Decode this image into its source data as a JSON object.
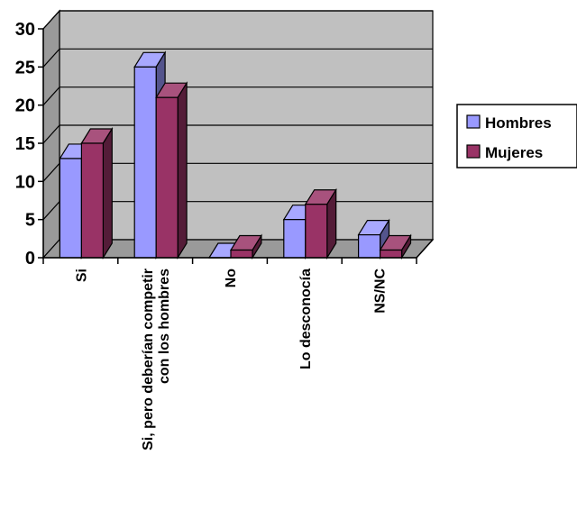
{
  "chart_data": {
    "type": "bar",
    "style": "3d-clustered-column",
    "categories": [
      "Si",
      "Si, pero deberían competir con los hombres",
      "No",
      "Lo desconocía",
      "NS/NC"
    ],
    "category_lines": [
      [
        "Si"
      ],
      [
        "Si, pero deberían competir",
        "con los hombres"
      ],
      [
        "No"
      ],
      [
        "Lo desconocía"
      ],
      [
        "NS/NC"
      ]
    ],
    "series": [
      {
        "name": "Hombres",
        "values": [
          13,
          25,
          0,
          5,
          3
        ],
        "color": "#9999ff"
      },
      {
        "name": "Mujeres",
        "values": [
          15,
          21,
          1,
          7,
          1
        ],
        "color": "#993366"
      }
    ],
    "ylim": [
      0,
      30
    ],
    "yticks": [
      "0",
      "5",
      "10",
      "15",
      "20",
      "25",
      "30"
    ],
    "grid": true,
    "legend_position": "right",
    "title": "",
    "xlabel": "",
    "ylabel": ""
  }
}
